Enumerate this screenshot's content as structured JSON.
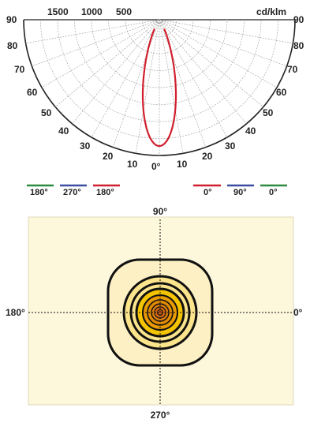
{
  "polar": {
    "unit": "cd/klm",
    "scale_labels": [
      "1500",
      "1000",
      "500"
    ],
    "angle_labels": [
      "90",
      "80",
      "70",
      "60",
      "50",
      "40",
      "30",
      "20",
      "10",
      "0°"
    ],
    "series_color": "#d0202e"
  },
  "legend": {
    "left": [
      {
        "label": "180°",
        "color": "#2e8b3e"
      },
      {
        "label": "270°",
        "color": "#3a4fa0"
      },
      {
        "label": "180°",
        "color": "#d0202e"
      }
    ],
    "right": [
      {
        "label": "0°",
        "color": "#d0202e"
      },
      {
        "label": "90°",
        "color": "#3a4fa0"
      },
      {
        "label": "0°",
        "color": "#2e8b3e"
      }
    ]
  },
  "isolux": {
    "label_top": "90°",
    "label_bottom": "270°",
    "label_left": "180°",
    "label_right": "0°",
    "background_color": "#fdf7dc",
    "fill_colors": [
      "#fdf0c4",
      "#fbe48c",
      "#f5c400",
      "#e89a00",
      "#d86a10"
    ]
  }
}
